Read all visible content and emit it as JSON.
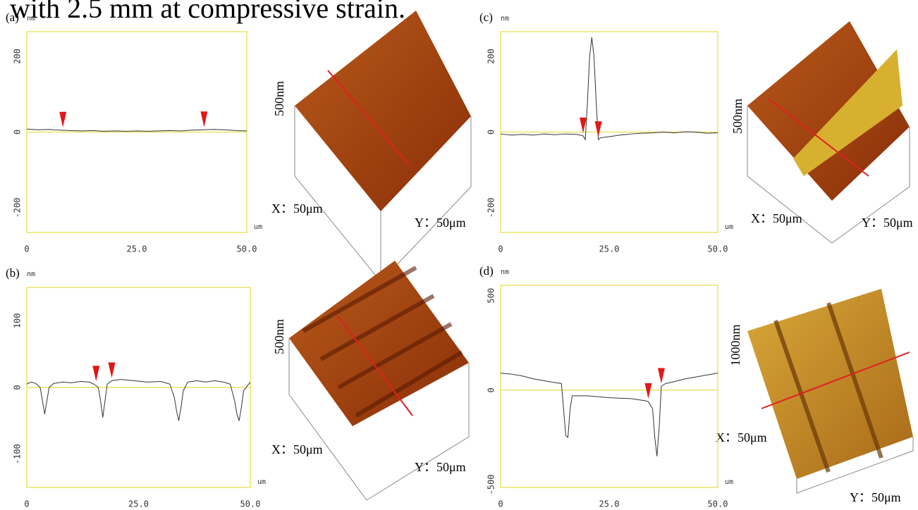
{
  "caption": "with 2.5 mm at compressive strain.",
  "chart_data": [
    {
      "type": "line",
      "panel": "(a)",
      "y_unit": "nm",
      "x_unit": "um",
      "color": "#333333",
      "frame_color": "#eee36a",
      "zero_line": true,
      "x": [
        0,
        2.5,
        5,
        7.5,
        10,
        12.5,
        15,
        17.5,
        20,
        22.5,
        25,
        27.5,
        30,
        32.5,
        35,
        37.5,
        40,
        42.5,
        45,
        47.5,
        50
      ],
      "values": [
        8,
        6,
        7,
        5,
        4,
        3,
        4,
        2,
        3,
        2,
        3,
        2,
        3,
        4,
        3,
        5,
        6,
        7,
        6,
        4,
        3
      ],
      "markers": [
        8.2,
        40.3
      ],
      "marker_color": "#e01818",
      "xlim": [
        0,
        50
      ],
      "xticks": [
        0,
        {
          "value": 25,
          "label": "25.0"
        },
        {
          "value": 50,
          "label": "50.0"
        }
      ],
      "ylim": [
        -265,
        265
      ],
      "yticks": [
        -200,
        0,
        200
      ]
    },
    {
      "type": "line",
      "panel": "(b)",
      "y_unit": "nm",
      "x_unit": "um",
      "color": "#333333",
      "frame_color": "#eee36a",
      "zero_line": true,
      "x": [
        0,
        1,
        2,
        3,
        3.5,
        4,
        4.5,
        5,
        6,
        8,
        10,
        12,
        14,
        15,
        16,
        16.5,
        17,
        17.5,
        18,
        19,
        21,
        24,
        27,
        30,
        32,
        33,
        33.5,
        34,
        34.5,
        35,
        36,
        38,
        40,
        42,
        44,
        45.5,
        46.5,
        47,
        47.5,
        48,
        48.5,
        50
      ],
      "values": [
        5,
        8,
        6,
        0,
        -20,
        -40,
        -20,
        0,
        6,
        8,
        7,
        9,
        8,
        5,
        0,
        -20,
        -45,
        -20,
        5,
        10,
        12,
        10,
        8,
        9,
        5,
        -15,
        -35,
        -50,
        -30,
        -5,
        8,
        10,
        8,
        10,
        8,
        5,
        -20,
        -40,
        -50,
        -30,
        -5,
        8
      ],
      "markers": [
        15.5,
        19
      ],
      "marker_color": "#e01818",
      "xlim": [
        0,
        50
      ],
      "xticks": [
        0,
        {
          "value": 25,
          "label": "25.0"
        },
        {
          "value": 50,
          "label": "50.0"
        }
      ],
      "ylim": [
        -150,
        150
      ],
      "yticks": [
        -100,
        0,
        100
      ]
    },
    {
      "type": "line",
      "panel": "(c)",
      "y_unit": "nm",
      "x_unit": "um",
      "color": "#333333",
      "frame_color": "#eee36a",
      "zero_line": true,
      "x": [
        0,
        2.5,
        5,
        7.5,
        10,
        12.5,
        15,
        17.5,
        19,
        19.5,
        20,
        20.5,
        21,
        21.5,
        22,
        22.5,
        23,
        25,
        27.5,
        30,
        32.5,
        35,
        37.5,
        40,
        42.5,
        45,
        47.5,
        50
      ],
      "values": [
        -5,
        -8,
        -6,
        -8,
        -5,
        -7,
        -5,
        -6,
        -10,
        -20,
        80,
        200,
        250,
        200,
        80,
        -20,
        -15,
        -12,
        -8,
        -5,
        -3,
        -2,
        0,
        -2,
        1,
        0,
        -3,
        -2
      ],
      "markers": [
        19,
        22.5
      ],
      "marker_color": "#e01818",
      "xlim": [
        0,
        50
      ],
      "xticks": [
        0,
        {
          "value": 25,
          "label": "25.0"
        },
        {
          "value": 50,
          "label": "50.0"
        }
      ],
      "ylim": [
        -265,
        265
      ],
      "yticks": [
        -200,
        0,
        200
      ]
    },
    {
      "type": "line",
      "panel": "(d)",
      "y_unit": "nm",
      "x_unit": "um",
      "color": "#333333",
      "frame_color": "#eee36a",
      "zero_line": true,
      "x": [
        0,
        2.5,
        5,
        7.5,
        10,
        12.5,
        14,
        14.5,
        15,
        15.5,
        16,
        16.5,
        20,
        25,
        30,
        33,
        34,
        35,
        35.5,
        36,
        36.5,
        37,
        38,
        40,
        42.5,
        45,
        47.5,
        50
      ],
      "values": [
        90,
        85,
        75,
        60,
        50,
        40,
        35,
        -100,
        -240,
        -250,
        -100,
        -30,
        -30,
        -40,
        -45,
        -55,
        -60,
        -100,
        -250,
        -350,
        -200,
        20,
        35,
        45,
        60,
        70,
        80,
        90
      ],
      "markers": [
        34,
        37
      ],
      "marker_color": "#e01818",
      "xlim": [
        0,
        50
      ],
      "xticks": [
        0,
        {
          "value": 25,
          "label": "25.0"
        },
        {
          "value": 50,
          "label": "50.0"
        }
      ],
      "ylim": [
        -515,
        555
      ],
      "yticks": [
        -500,
        0,
        500
      ]
    }
  ],
  "images": [
    {
      "z_label": "500nm",
      "x_label": "X：50μm",
      "y_label": "Y：50μm"
    },
    {
      "z_label": "500nm",
      "x_label": "X：50μm",
      "y_label": "Y：50μm"
    },
    {
      "z_label": "500nm",
      "x_label": "X：50μm",
      "y_label": "Y：50μm"
    },
    {
      "z_label": "1000nm",
      "x_label": "X：50μm",
      "y_label": "Y：50μm"
    }
  ]
}
